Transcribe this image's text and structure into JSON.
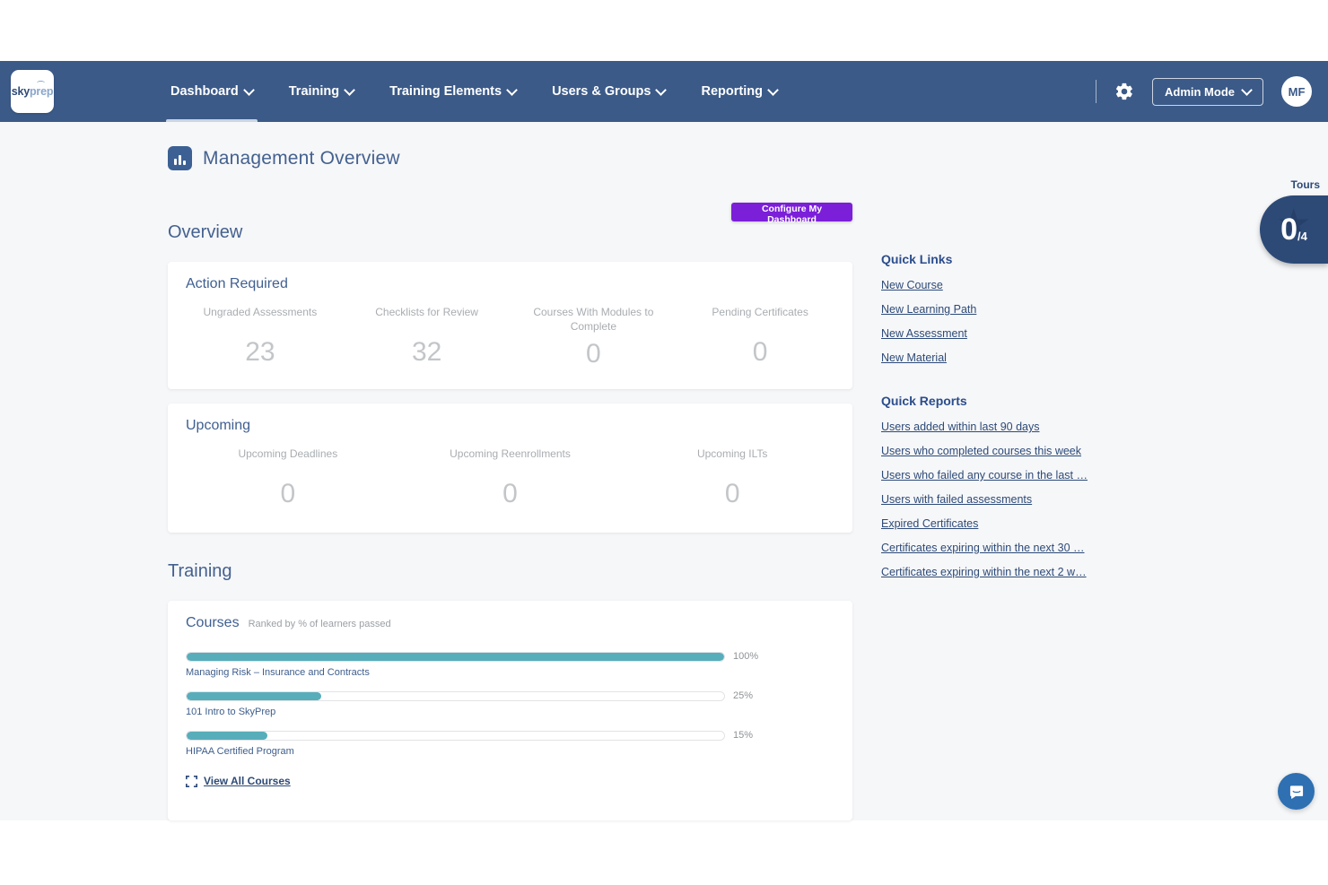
{
  "brand": {
    "sky": "sky",
    "prep": "prep"
  },
  "navbar": {
    "items": [
      {
        "label": "Dashboard"
      },
      {
        "label": "Training"
      },
      {
        "label": "Training Elements"
      },
      {
        "label": "Users & Groups"
      },
      {
        "label": "Reporting"
      }
    ],
    "admin_mode_label": "Admin Mode",
    "avatar_initials": "MF"
  },
  "page": {
    "title": "Management Overview"
  },
  "tours": {
    "label": "Tours",
    "count": "0",
    "total": "/4"
  },
  "configure_button_label": "Configure My Dashboard",
  "overview": {
    "heading": "Overview",
    "action_required": {
      "title": "Action Required",
      "stats": [
        {
          "label": "Ungraded Assessments",
          "value": "23"
        },
        {
          "label": "Checklists for Review",
          "value": "32"
        },
        {
          "label": "Courses With Modules to Complete",
          "value": "0"
        },
        {
          "label": "Pending Certificates",
          "value": "0"
        }
      ]
    },
    "upcoming": {
      "title": "Upcoming",
      "stats": [
        {
          "label": "Upcoming Deadlines",
          "value": "0"
        },
        {
          "label": "Upcoming Reenrollments",
          "value": "0"
        },
        {
          "label": "Upcoming ILTs",
          "value": "0"
        }
      ]
    }
  },
  "training": {
    "heading": "Training",
    "courses": {
      "title": "Courses",
      "subtitle": "Ranked by % of learners passed",
      "view_all_label": "View All Courses"
    }
  },
  "chart_data": {
    "type": "bar",
    "title": "Courses ranked by % of learners passed",
    "bars": [
      {
        "label": "Managing Risk – Insurance and Contracts",
        "value": 100,
        "display": "100%"
      },
      {
        "label": "101 Intro to SkyPrep",
        "value": 25,
        "display": "25%"
      },
      {
        "label": "HIPAA Certified Program",
        "value": 15,
        "display": "15%"
      }
    ],
    "xlim": [
      0,
      100
    ],
    "bar_color": "#58adbb"
  },
  "quick_links": {
    "heading": "Quick Links",
    "links": [
      {
        "label": "New Course"
      },
      {
        "label": "New Learning Path"
      },
      {
        "label": "New Assessment"
      },
      {
        "label": "New Material"
      }
    ]
  },
  "quick_reports": {
    "heading": "Quick Reports",
    "links": [
      {
        "label": "Users added within last 90 days"
      },
      {
        "label": "Users who completed courses this week"
      },
      {
        "label": "Users who failed any course in the last …"
      },
      {
        "label": "Users with failed assessments"
      },
      {
        "label": "Expired Certificates"
      },
      {
        "label": "Certificates expiring within the next 30 …"
      },
      {
        "label": "Certificates expiring within the next 2 w…"
      }
    ]
  },
  "colors": {
    "navbar": "#3b5a88",
    "badge_navy": "#2d4a77",
    "accent_purple": "#7b1fd9",
    "bar_teal": "#58adbb",
    "link_navy": "#2d4a77"
  }
}
